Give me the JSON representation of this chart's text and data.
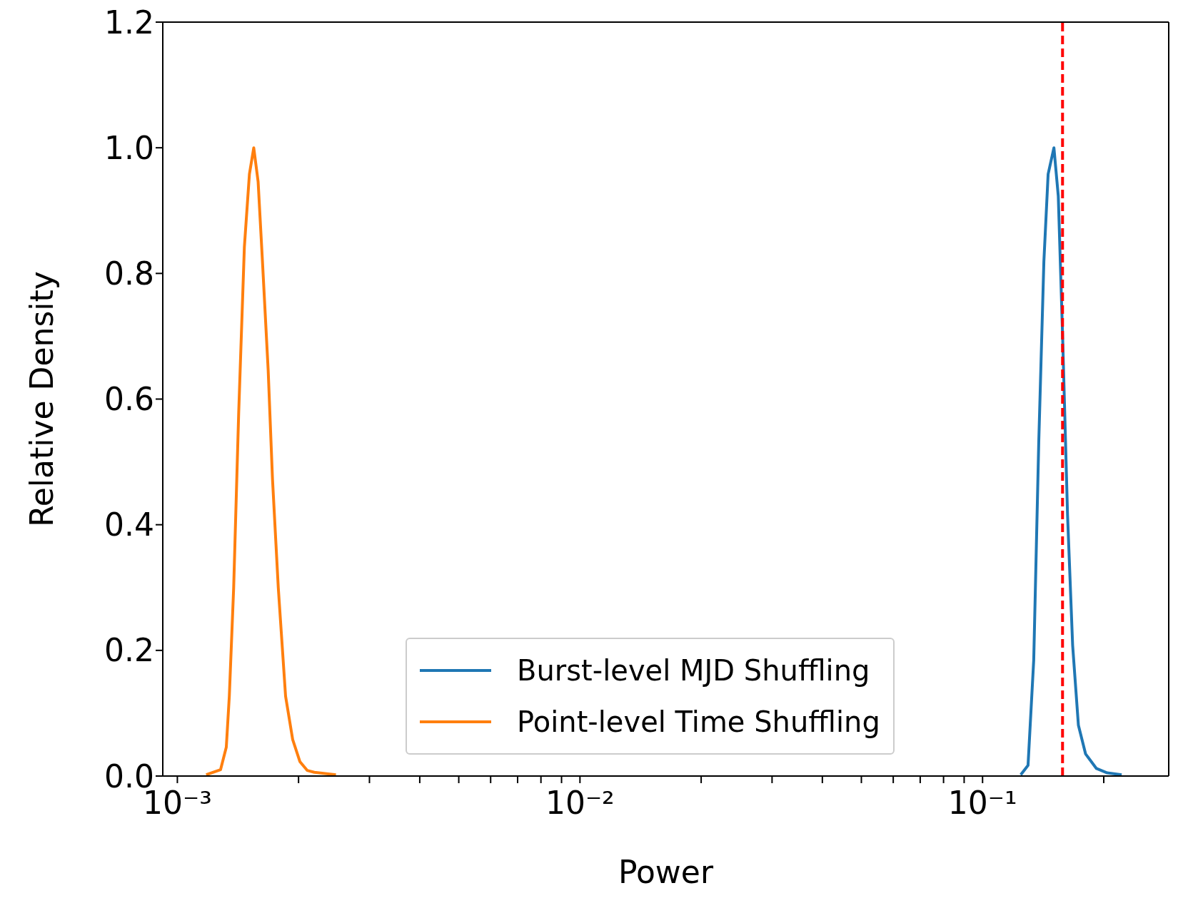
{
  "chart_data": {
    "type": "line",
    "xlabel": "Power",
    "ylabel": "Relative Density",
    "log": "x",
    "xlim": [
      0.00092,
      0.29
    ],
    "ylim": [
      0,
      1.2
    ],
    "xticks": [
      {
        "value": 0.001,
        "label": "10⁻³"
      },
      {
        "value": 0.002,
        "label": null
      },
      {
        "value": 0.003,
        "label": null
      },
      {
        "value": 0.004,
        "label": null
      },
      {
        "value": 0.005,
        "label": null
      },
      {
        "value": 0.006,
        "label": null
      },
      {
        "value": 0.007,
        "label": null
      },
      {
        "value": 0.008,
        "label": null
      },
      {
        "value": 0.009,
        "label": null
      },
      {
        "value": 0.01,
        "label": "10⁻²"
      },
      {
        "value": 0.02,
        "label": null
      },
      {
        "value": 0.03,
        "label": null
      },
      {
        "value": 0.04,
        "label": null
      },
      {
        "value": 0.05,
        "label": null
      },
      {
        "value": 0.06,
        "label": null
      },
      {
        "value": 0.07,
        "label": null
      },
      {
        "value": 0.08,
        "label": null
      },
      {
        "value": 0.09,
        "label": null
      },
      {
        "value": 0.1,
        "label": "10⁻¹"
      },
      {
        "value": 0.2,
        "label": null
      }
    ],
    "yticks": [
      {
        "value": 0,
        "label": "0.0"
      },
      {
        "value": 0.2,
        "label": "0.2"
      },
      {
        "value": 0.4,
        "label": "0.4"
      },
      {
        "value": 0.6,
        "label": "0.6"
      },
      {
        "value": 0.8,
        "label": "0.8"
      },
      {
        "value": 1,
        "label": "1.0"
      },
      {
        "value": 1.2,
        "label": "1.2"
      }
    ],
    "grid": false,
    "legend": "bottom",
    "marker": "none",
    "line_style": "solid",
    "series": [
      {
        "name": "Burst-level MJD Shuffling",
        "color": "#1f77b4",
        "x": [
          0.1244,
          0.1297,
          0.134,
          0.1379,
          0.142,
          0.1455,
          0.1504,
          0.1542,
          0.158,
          0.1626,
          0.1674,
          0.173,
          0.1803,
          0.1918,
          0.204,
          0.2216
        ],
        "values": [
          0.002,
          0.017,
          0.185,
          0.531,
          0.819,
          0.958,
          1.0,
          0.923,
          0.704,
          0.415,
          0.208,
          0.081,
          0.035,
          0.012,
          0.005,
          0.002
        ]
      },
      {
        "name": "Point-level Time Shuffling",
        "color": "#ff7f0e",
        "x": [
          0.001179,
          0.00128,
          0.001323,
          0.001346,
          0.00138,
          0.00142,
          0.001467,
          0.00151,
          0.001548,
          0.001587,
          0.001627,
          0.001681,
          0.001723,
          0.001781,
          0.001857,
          0.001934,
          0.002015,
          0.002101,
          0.002189,
          0.002477
        ],
        "values": [
          0.002,
          0.01,
          0.046,
          0.127,
          0.3,
          0.577,
          0.842,
          0.958,
          1.0,
          0.946,
          0.819,
          0.646,
          0.473,
          0.3,
          0.127,
          0.058,
          0.023,
          0.009,
          0.006,
          0.002
        ]
      }
    ],
    "ref_lines": [
      {
        "axis": "x",
        "value": 0.158,
        "color": "#ff0000",
        "line_style": "dashed"
      }
    ]
  }
}
